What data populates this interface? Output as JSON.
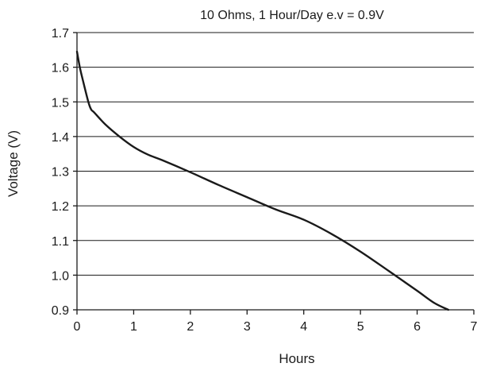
{
  "chart_data": {
    "type": "line",
    "title": "10 Ohms, 1 Hour/Day e.v = 0.9V",
    "xlabel": "Hours",
    "ylabel": "Voltage (V)",
    "xlim": [
      0,
      7
    ],
    "ylim": [
      0.9,
      1.7
    ],
    "xticks": [
      "0",
      "1",
      "2",
      "3",
      "4",
      "5",
      "6",
      "7"
    ],
    "yticks": [
      "0.9",
      "1.0",
      "1.1",
      "1.2",
      "1.3",
      "1.4",
      "1.5",
      "1.6",
      "1.7"
    ],
    "grid": "horizontal",
    "series": [
      {
        "x": [
          0,
          0.05,
          0.1,
          0.2,
          0.25,
          0.3,
          0.5,
          0.75,
          1.0,
          1.25,
          1.5,
          2.0,
          2.5,
          3.0,
          3.5,
          4.0,
          4.5,
          5.0,
          5.5,
          6.0,
          6.3,
          6.55
        ],
        "y": [
          1.645,
          1.6,
          1.565,
          1.5,
          1.478,
          1.47,
          1.435,
          1.4,
          1.37,
          1.348,
          1.332,
          1.297,
          1.26,
          1.225,
          1.19,
          1.16,
          1.118,
          1.068,
          1.012,
          0.955,
          0.92,
          0.9
        ]
      }
    ]
  }
}
